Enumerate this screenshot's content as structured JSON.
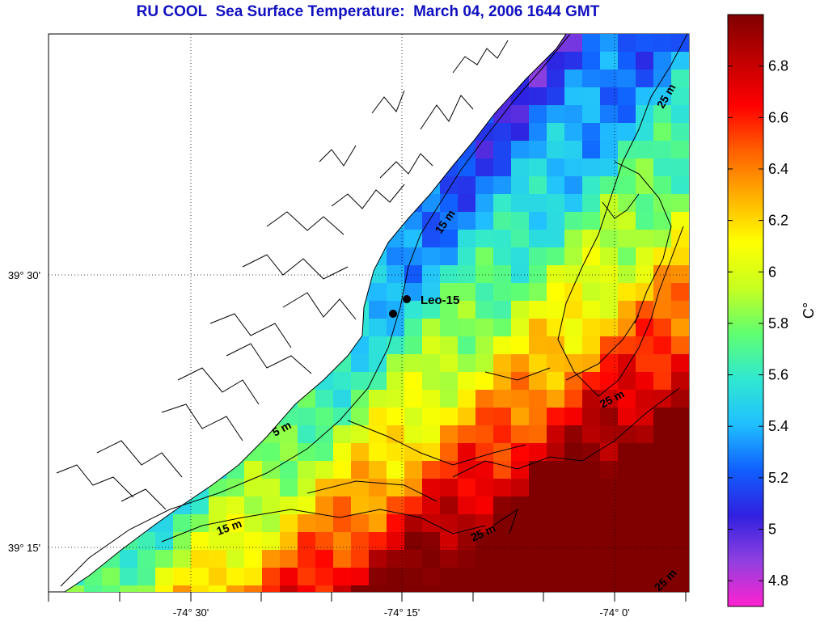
{
  "title": "RU COOL  Sea Surface Temperature:  March 04, 2006 1644 GMT",
  "colorbar": {
    "unit_label": "C°",
    "min": 4.7,
    "max": 7.0,
    "ticks": [
      "4.8",
      "5",
      "5.2",
      "5.4",
      "5.6",
      "5.8",
      "6",
      "6.2",
      "6.4",
      "6.6",
      "6.8"
    ],
    "colors": [
      "#ff22d0",
      "#9040e0",
      "#3020e0",
      "#1060ff",
      "#20c0ff",
      "#30e8d0",
      "#60ff70",
      "#c8ff20",
      "#ffff00",
      "#ffb000",
      "#ff6000",
      "#ff0000",
      "#c00000",
      "#800000"
    ]
  },
  "axes": {
    "x_ticks": [
      "-74° 30'",
      "-74° 15'",
      "-74° 0'"
    ],
    "y_ticks": [
      "39° 30'",
      "39° 15'"
    ]
  },
  "isobath_labels": [
    "25 m",
    "15 m",
    "5 m",
    "15 m",
    "25 m",
    "25 m",
    "25 m"
  ],
  "station": {
    "label": "Leo-15"
  }
}
